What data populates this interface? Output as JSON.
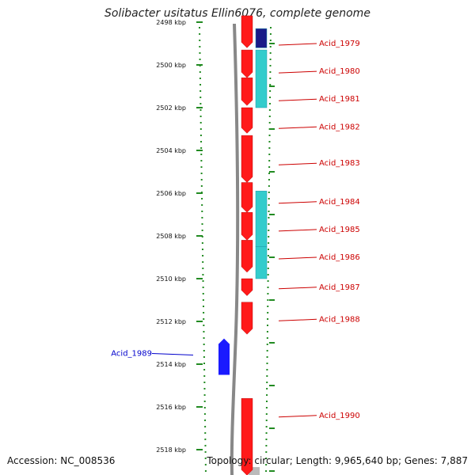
{
  "title": "Solibacter usitatus Ellin6076, complete genome",
  "accession": "Accession: NC_008536",
  "summary": "Topology: circular; Length: 9,965,640 bp; Genes: 7,887",
  "colors": {
    "cds_red": "#ff1a1a",
    "cds_blue": "#1a1aff",
    "navy": "#1a1a88",
    "cyan": "#33cccc",
    "label_red": "#cc0000",
    "label_blue": "#0000cc",
    "grid_green": "#228b22",
    "axis_gray": "#888888"
  },
  "ticks": [
    {
      "label": "2498 kbp",
      "kbp": 2498
    },
    {
      "label": "2500 kbp",
      "kbp": 2500
    },
    {
      "label": "2502 kbp",
      "kbp": 2502
    },
    {
      "label": "2504 kbp",
      "kbp": 2504
    },
    {
      "label": "2506 kbp",
      "kbp": 2506
    },
    {
      "label": "2508 kbp",
      "kbp": 2508
    },
    {
      "label": "2510 kbp",
      "kbp": 2510
    },
    {
      "label": "2512 kbp",
      "kbp": 2512
    },
    {
      "label": "2514 kbp",
      "kbp": 2514
    },
    {
      "label": "2516 kbp",
      "kbp": 2516
    },
    {
      "label": "2518 kbp",
      "kbp": 2518
    }
  ],
  "genes": [
    {
      "name": "Acid_1979",
      "start_kbp": 2497.7,
      "end_kbp": 2499.2,
      "strand": "+",
      "side": "right",
      "color": "red",
      "label_kbp": 2499.0
    },
    {
      "name": "Acid_1980",
      "start_kbp": 2499.3,
      "end_kbp": 2500.6,
      "strand": "+",
      "side": "right",
      "color": "red",
      "label_kbp": 2500.3
    },
    {
      "name": "Acid_1981",
      "start_kbp": 2500.6,
      "end_kbp": 2501.9,
      "strand": "+",
      "side": "right",
      "color": "red",
      "label_kbp": 2501.6
    },
    {
      "name": "Acid_1982",
      "start_kbp": 2502.0,
      "end_kbp": 2503.2,
      "strand": "+",
      "side": "right",
      "color": "red",
      "label_kbp": 2502.9
    },
    {
      "name": "Acid_1983",
      "start_kbp": 2503.3,
      "end_kbp": 2505.5,
      "strand": "+",
      "side": "right",
      "color": "red",
      "label_kbp": 2504.6
    },
    {
      "name": "Acid_1984",
      "start_kbp": 2505.5,
      "end_kbp": 2506.9,
      "strand": "+",
      "side": "right",
      "color": "red",
      "label_kbp": 2506.4
    },
    {
      "name": "Acid_1985",
      "start_kbp": 2506.9,
      "end_kbp": 2508.2,
      "strand": "+",
      "side": "right",
      "color": "red",
      "label_kbp": 2507.7
    },
    {
      "name": "Acid_1986",
      "start_kbp": 2508.2,
      "end_kbp": 2509.7,
      "strand": "+",
      "side": "right",
      "color": "red",
      "label_kbp": 2509.0
    },
    {
      "name": "Acid_1987",
      "start_kbp": 2510.0,
      "end_kbp": 2510.8,
      "strand": "+",
      "side": "right",
      "color": "red",
      "label_kbp": 2510.4
    },
    {
      "name": "Acid_1988",
      "start_kbp": 2511.1,
      "end_kbp": 2512.6,
      "strand": "+",
      "side": "right",
      "color": "red",
      "label_kbp": 2511.9
    },
    {
      "name": "Acid_1989",
      "start_kbp": 2512.8,
      "end_kbp": 2514.5,
      "strand": "-",
      "side": "left",
      "color": "blue",
      "label_kbp": 2513.5
    },
    {
      "name": "Acid_1990",
      "start_kbp": 2515.6,
      "end_kbp": 2519.2,
      "strand": "+",
      "side": "right",
      "color": "red",
      "label_kbp": 2516.4
    }
  ],
  "features": [
    {
      "start_kbp": 2498.3,
      "end_kbp": 2499.2,
      "color": "navy"
    },
    {
      "start_kbp": 2499.3,
      "end_kbp": 2502.0,
      "color": "cyan"
    },
    {
      "start_kbp": 2505.9,
      "end_kbp": 2508.5,
      "color": "cyan"
    },
    {
      "start_kbp": 2508.5,
      "end_kbp": 2510.0,
      "color": "cyan"
    }
  ]
}
